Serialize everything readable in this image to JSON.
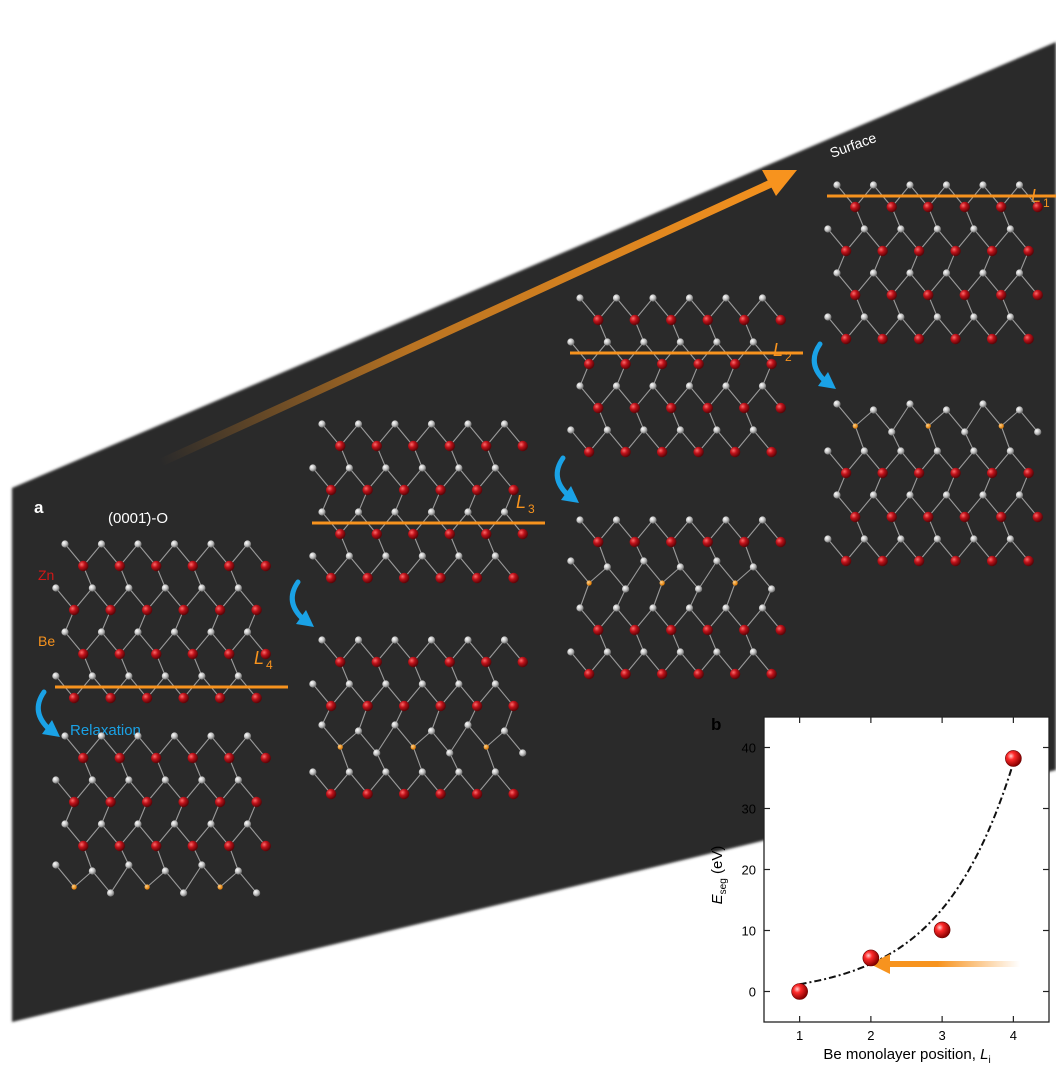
{
  "panel_a": {
    "label": "a",
    "surface_orientation": "(0001̄)-O",
    "zn_label": "Zn",
    "be_label": "Be",
    "relaxation_label": "Relaxation",
    "surface_label": "Surface",
    "layer_labels": [
      {
        "letter": "L",
        "sub": "4"
      },
      {
        "letter": "L",
        "sub": "3"
      },
      {
        "letter": "L",
        "sub": "2"
      },
      {
        "letter": "L",
        "sub": "1"
      }
    ]
  },
  "panel_b": {
    "label": "b",
    "ylabel_main": "E",
    "ylabel_sub": "seg",
    "ylabel_unit": " (eV)",
    "xlabel_main": "Be monolayer position, ",
    "xlabel_var": "L",
    "xlabel_sub": "i"
  },
  "chart_data": {
    "type": "scatter",
    "x": [
      1,
      2,
      3,
      4
    ],
    "y": [
      0,
      5.5,
      10.1,
      38.2
    ],
    "xticks": [
      "1",
      "2",
      "3",
      "4"
    ],
    "yticks": [
      "0",
      "10",
      "20",
      "30",
      "40"
    ],
    "xlim": [
      0.5,
      4.5
    ],
    "ylim": [
      -5,
      45
    ],
    "fit": "exponential dash-dot curve",
    "marker_color": "#e4181c",
    "arrow_color": "#f7931e"
  },
  "colors": {
    "slab": "#2b2b2b",
    "zn_atom": "#b0121a",
    "o_atom": "#c8c8c8",
    "be_atom": "#f7931e",
    "be_layer_line": "#f7931e",
    "label_orange": "#f7931e",
    "relax_blue": "#1aa2e6"
  }
}
